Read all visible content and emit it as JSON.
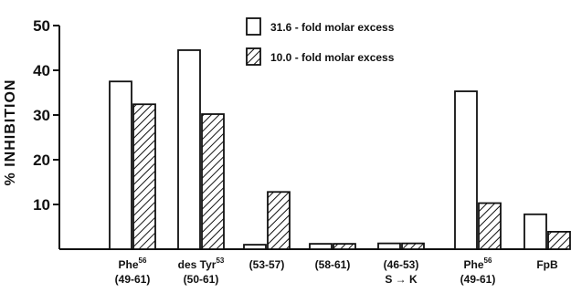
{
  "chart_data": {
    "type": "bar",
    "ylabel": "% INHIBITION",
    "ylim": [
      0,
      50
    ],
    "yticks": [
      "50",
      "40",
      "30",
      "20",
      "10"
    ],
    "grid": false,
    "legend_position": "top-right",
    "categories": [
      {
        "main": "Phe",
        "sup": "56",
        "line2": "(49-61)"
      },
      {
        "main": "des Tyr",
        "sup": "53",
        "line2": "(50-61)"
      },
      {
        "main": "(53-57)",
        "sup": "",
        "line2": ""
      },
      {
        "main": "(58-61)",
        "sup": "",
        "line2": ""
      },
      {
        "main": "(46-53)",
        "sup": "",
        "line2": "S → K"
      },
      {
        "main": "Phe",
        "sup": "56",
        "line2": "(49-61)"
      },
      {
        "main": "FpB",
        "sup": "",
        "line2": ""
      }
    ],
    "series": [
      {
        "name": "31.6 - fold molar excess",
        "pattern": "open",
        "values": [
          37.5,
          44.5,
          1.0,
          1.2,
          1.3,
          35.3,
          7.8
        ]
      },
      {
        "name": "10.0 - fold molar excess",
        "pattern": "hatched",
        "values": [
          32.4,
          30.2,
          12.8,
          1.2,
          1.3,
          10.3,
          3.9
        ]
      }
    ]
  }
}
